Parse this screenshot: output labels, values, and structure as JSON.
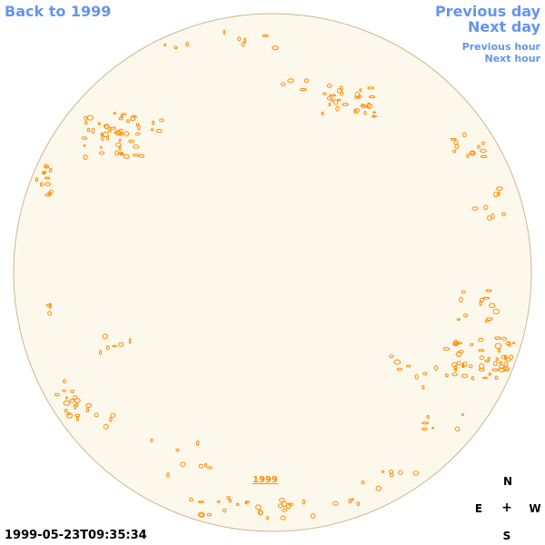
{
  "nav": {
    "back_label": "Back to 1999",
    "previous_day_label": "Previous day",
    "next_day_label": "Next day",
    "previous_hour_label": "Previous hour",
    "next_hour_label": "Next hour"
  },
  "timestamp": "1999-05-23T09:35:34",
  "year_label": "1999",
  "compass": {
    "north": "N",
    "east": "E",
    "west": "W",
    "south": "S",
    "center": "+"
  },
  "colors": {
    "disk_fill": "#fdf8ec",
    "disk_border": "#c8b896",
    "contour": "#ff8c00",
    "link": "#6495ed"
  }
}
